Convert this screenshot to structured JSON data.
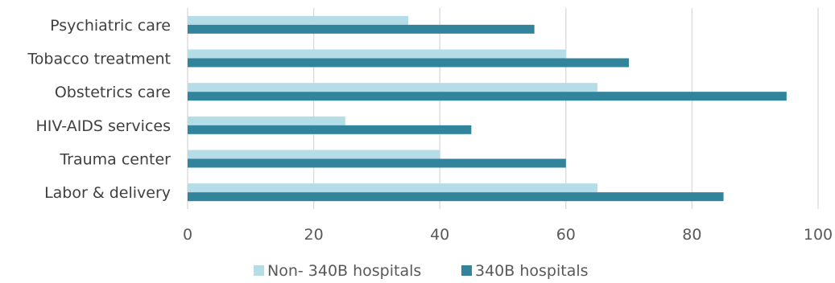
{
  "chart_data": {
    "type": "bar",
    "orientation": "horizontal",
    "categories": [
      "Psychiatric care",
      "Tobacco treatment",
      "Obstetrics care",
      "HIV-AIDS services",
      "Trauma center",
      "Labor & delivery"
    ],
    "series": [
      {
        "name": "Non- 340B hospitals",
        "color": "#b4dde7",
        "values": [
          35,
          60,
          65,
          25,
          40,
          65
        ]
      },
      {
        "name": "340B hospitals",
        "color": "#31849b",
        "values": [
          55,
          70,
          95,
          45,
          60,
          85
        ]
      }
    ],
    "xlim": [
      0,
      100
    ],
    "xticks": [
      "0",
      "20",
      "40",
      "60",
      "80",
      "100"
    ],
    "grid": true,
    "legend_position": "bottom"
  }
}
